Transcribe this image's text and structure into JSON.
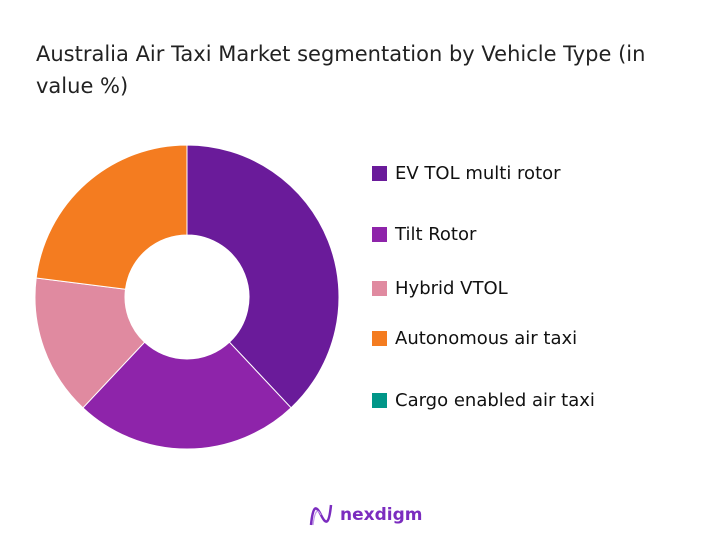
{
  "chart_data": {
    "type": "pie",
    "title": "Australia Air Taxi Market segmentation by Vehicle Type (in value %)",
    "categories": [
      "EV TOL multi rotor",
      "Tilt Rotor",
      "Hybrid VTOL",
      "Autonomous air taxi",
      "Cargo enabled air taxi"
    ],
    "values": [
      38,
      24,
      15,
      23,
      0
    ],
    "colors": [
      "#6a1b9a",
      "#8e24aa",
      "#e08aa0",
      "#f47c20",
      "#009688"
    ],
    "donut": true,
    "legend": "right"
  },
  "brand": {
    "name": "nexdigm"
  }
}
